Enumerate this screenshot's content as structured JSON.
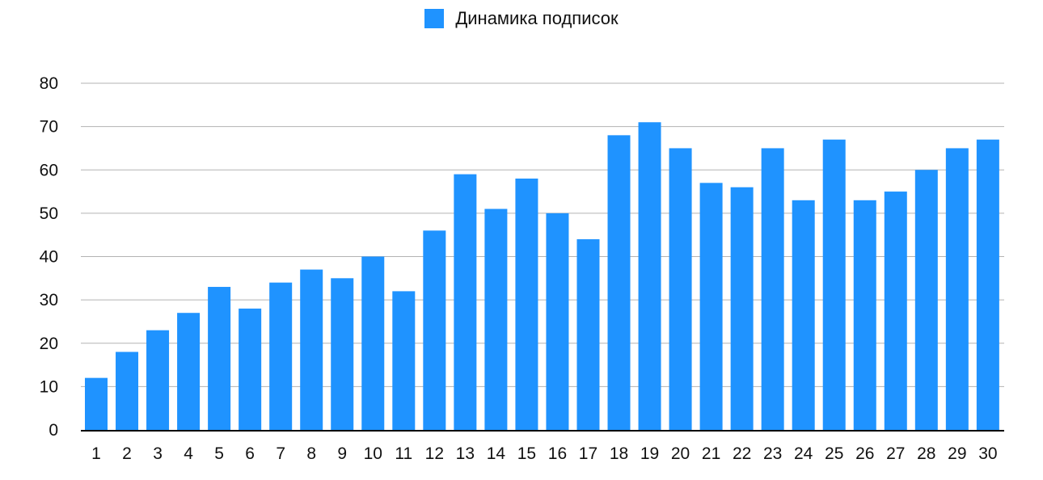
{
  "chart_data": {
    "type": "bar",
    "categories": [
      "1",
      "2",
      "3",
      "4",
      "5",
      "6",
      "7",
      "8",
      "9",
      "10",
      "11",
      "12",
      "13",
      "14",
      "15",
      "16",
      "17",
      "18",
      "19",
      "20",
      "21",
      "22",
      "23",
      "24",
      "25",
      "26",
      "27",
      "28",
      "29",
      "30"
    ],
    "series": [
      {
        "name": "Динамика подписок",
        "values": [
          12,
          18,
          23,
          27,
          33,
          28,
          34,
          37,
          35,
          40,
          32,
          46,
          59,
          51,
          58,
          50,
          44,
          68,
          71,
          65,
          57,
          56,
          65,
          53,
          67,
          53,
          55,
          60,
          65,
          67
        ]
      }
    ],
    "ylim": [
      0,
      80
    ],
    "yticks": [
      0,
      10,
      20,
      30,
      40,
      50,
      60,
      70,
      80
    ],
    "grid": true,
    "legend_position": "top-center",
    "colors": {
      "bar": "#1f93ff",
      "grid": "#b3b3b3",
      "axis": "#000000"
    }
  }
}
